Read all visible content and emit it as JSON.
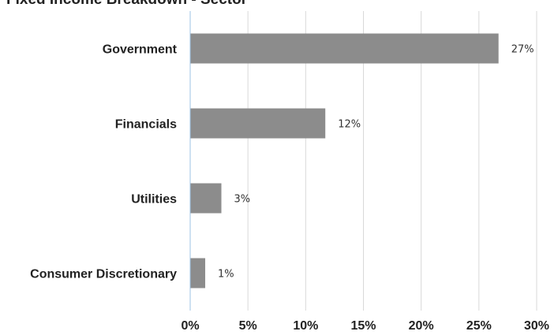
{
  "chart_data": {
    "type": "bar",
    "orientation": "horizontal",
    "title": "Fixed Income Breakdown - Sector",
    "categories": [
      "Government",
      "Financials",
      "Utilities",
      "Consumer Discretionary"
    ],
    "values": [
      26.7,
      11.7,
      2.7,
      1.3
    ],
    "data_labels": [
      "27%",
      "12%",
      "3%",
      "1%"
    ],
    "x_ticks": [
      "0%",
      "5%",
      "10%",
      "15%",
      "20%",
      "25%",
      "30%"
    ],
    "xlim": [
      0,
      30
    ],
    "xlabel": "",
    "ylabel": "",
    "grid": true,
    "bar_color": "#8c8c8c",
    "grid_color": "#d9d9d9",
    "axis_color": "#9dc3e6"
  }
}
